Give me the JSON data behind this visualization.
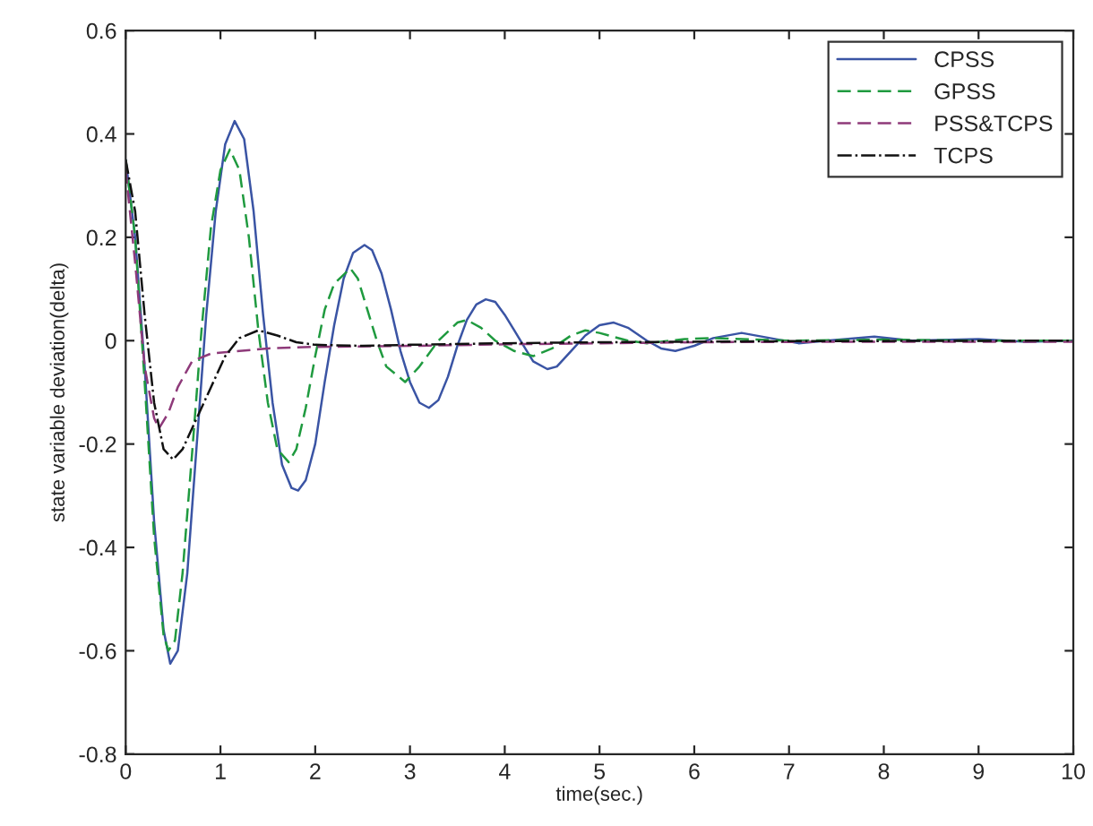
{
  "chart_data": {
    "type": "line",
    "xlabel": "time(sec.)",
    "ylabel": "state variable deviation(delta)",
    "xlim": [
      0,
      10
    ],
    "ylim": [
      -0.8,
      0.6
    ],
    "xticks": [
      0,
      1,
      2,
      3,
      4,
      5,
      6,
      7,
      8,
      9,
      10
    ],
    "yticks": [
      -0.8,
      -0.6,
      -0.4,
      -0.2,
      0,
      0.2,
      0.4,
      0.6
    ],
    "grid": false,
    "legend": "top right",
    "series": [
      {
        "name": "CPSS",
        "color": "#3a54a4",
        "line_style": "solid",
        "x": [
          0,
          0.1,
          0.2,
          0.3,
          0.4,
          0.47,
          0.55,
          0.65,
          0.75,
          0.85,
          0.95,
          1.05,
          1.15,
          1.25,
          1.35,
          1.45,
          1.55,
          1.65,
          1.75,
          1.82,
          1.9,
          2.0,
          2.1,
          2.2,
          2.3,
          2.4,
          2.52,
          2.6,
          2.7,
          2.8,
          2.9,
          3.0,
          3.1,
          3.2,
          3.3,
          3.4,
          3.5,
          3.6,
          3.7,
          3.8,
          3.9,
          4.0,
          4.1,
          4.2,
          4.3,
          4.45,
          4.55,
          4.7,
          4.85,
          5.0,
          5.15,
          5.3,
          5.5,
          5.65,
          5.8,
          6.0,
          6.2,
          6.5,
          6.8,
          7.1,
          7.4,
          7.9,
          8.3,
          9,
          9.5,
          10
        ],
        "values": [
          0.35,
          0.2,
          -0.05,
          -0.35,
          -0.56,
          -0.625,
          -0.6,
          -0.45,
          -0.2,
          0.05,
          0.25,
          0.38,
          0.425,
          0.39,
          0.25,
          0.05,
          -0.12,
          -0.24,
          -0.285,
          -0.29,
          -0.27,
          -0.2,
          -0.08,
          0.03,
          0.12,
          0.17,
          0.185,
          0.175,
          0.13,
          0.06,
          -0.02,
          -0.08,
          -0.12,
          -0.13,
          -0.115,
          -0.07,
          -0.01,
          0.04,
          0.07,
          0.08,
          0.075,
          0.05,
          0.02,
          -0.01,
          -0.04,
          -0.055,
          -0.05,
          -0.02,
          0.01,
          0.03,
          0.035,
          0.025,
          0.0,
          -0.015,
          -0.02,
          -0.01,
          0.005,
          0.015,
          0.005,
          -0.005,
          0,
          0.008,
          0,
          0.003,
          -0.002,
          0
        ]
      },
      {
        "name": "GPSS",
        "color": "#1f9a3f",
        "line_style": "dashed",
        "x": [
          0,
          0.1,
          0.2,
          0.3,
          0.4,
          0.45,
          0.52,
          0.6,
          0.7,
          0.8,
          0.9,
          1.0,
          1.1,
          1.2,
          1.3,
          1.4,
          1.5,
          1.6,
          1.72,
          1.8,
          1.9,
          2.0,
          2.1,
          2.2,
          2.37,
          2.45,
          2.55,
          2.65,
          2.75,
          2.95,
          3.1,
          3.3,
          3.5,
          3.6,
          3.75,
          3.9,
          4.1,
          4.3,
          4.5,
          4.7,
          4.85,
          5.0,
          5.3,
          5.5,
          5.9,
          6.2,
          7,
          8,
          9,
          10
        ],
        "values": [
          0.35,
          0.2,
          -0.08,
          -0.38,
          -0.57,
          -0.6,
          -0.58,
          -0.45,
          -0.22,
          0.02,
          0.22,
          0.33,
          0.37,
          0.33,
          0.2,
          0.02,
          -0.12,
          -0.21,
          -0.235,
          -0.21,
          -0.13,
          -0.03,
          0.06,
          0.11,
          0.14,
          0.12,
          0.06,
          0.0,
          -0.05,
          -0.08,
          -0.05,
          0.0,
          0.035,
          0.04,
          0.025,
          0.0,
          -0.02,
          -0.03,
          -0.015,
          0.01,
          0.02,
          0.015,
          0.0,
          -0.005,
          0.003,
          0.005,
          0.0,
          0.002,
          0,
          0
        ]
      },
      {
        "name": "PSS&TCPS",
        "color": "#8e3a7a",
        "line_style": "dashed",
        "x": [
          0,
          0.1,
          0.2,
          0.3,
          0.35,
          0.45,
          0.55,
          0.7,
          0.9,
          1.2,
          1.5,
          2,
          3,
          4,
          5,
          6,
          8,
          10
        ],
        "values": [
          0.33,
          0.15,
          -0.05,
          -0.15,
          -0.17,
          -0.14,
          -0.09,
          -0.04,
          -0.025,
          -0.02,
          -0.015,
          -0.012,
          -0.01,
          -0.007,
          -0.005,
          -0.003,
          -0.002,
          -0.002
        ]
      },
      {
        "name": "TCPS",
        "color": "#111111",
        "line_style": "dashdot",
        "x": [
          0,
          0.1,
          0.2,
          0.3,
          0.4,
          0.5,
          0.6,
          0.75,
          0.9,
          1.05,
          1.2,
          1.4,
          1.6,
          1.8,
          2.0,
          2.5,
          3,
          4,
          5,
          7,
          10
        ],
        "values": [
          0.35,
          0.25,
          0.05,
          -0.12,
          -0.21,
          -0.23,
          -0.21,
          -0.15,
          -0.09,
          -0.03,
          0.005,
          0.02,
          0.01,
          -0.003,
          -0.008,
          -0.01,
          -0.008,
          -0.005,
          -0.003,
          -0.001,
          0
        ]
      }
    ]
  }
}
